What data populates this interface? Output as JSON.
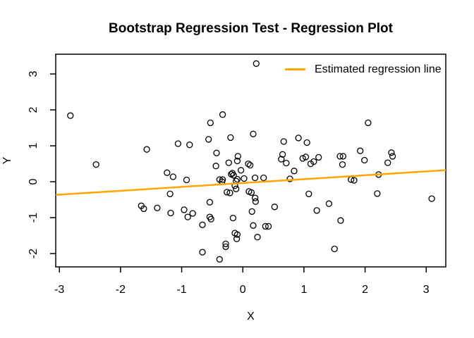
{
  "chart_data": {
    "type": "scatter",
    "title": "Bootstrap Regression Test - Regression Plot",
    "xlabel": "X",
    "ylabel": "Y",
    "xlim": [
      -3.06,
      3.32
    ],
    "ylim": [
      -2.37,
      3.55
    ],
    "x_ticks": [
      -3,
      -2,
      -1,
      0,
      1,
      2,
      3
    ],
    "y_ticks": [
      -2,
      -1,
      0,
      1,
      2,
      3
    ],
    "grid": false,
    "background": "#ffffff",
    "point_style": {
      "shape": "open-circle",
      "stroke": "#000000"
    },
    "legend": {
      "label": "Estimated regression line",
      "color": "#FFA500",
      "position": "top-right",
      "box": false
    },
    "regression_line": {
      "slope": 0.108,
      "intercept": -0.036,
      "x_start": -3.06,
      "x_end": 3.32,
      "color": "#FFA500"
    },
    "points": [
      [
        -2.82,
        1.84
      ],
      [
        -2.4,
        0.48
      ],
      [
        -1.66,
        -0.67
      ],
      [
        -1.62,
        -0.75
      ],
      [
        -1.57,
        0.9
      ],
      [
        -1.4,
        -0.73
      ],
      [
        -1.24,
        0.25
      ],
      [
        -1.19,
        -0.34
      ],
      [
        -1.18,
        -0.87
      ],
      [
        -1.14,
        0.14
      ],
      [
        -1.06,
        1.06
      ],
      [
        -0.96,
        -0.78
      ],
      [
        -0.92,
        0.05
      ],
      [
        -0.9,
        -0.98
      ],
      [
        -0.87,
        1.03
      ],
      [
        -0.82,
        -0.88
      ],
      [
        -0.66,
        -1.2
      ],
      [
        -0.66,
        -1.96
      ],
      [
        -0.56,
        1.18
      ],
      [
        -0.54,
        -0.57
      ],
      [
        -0.54,
        -0.98
      ],
      [
        -0.53,
        1.64
      ],
      [
        -0.52,
        -1.04
      ],
      [
        -0.44,
        0.44
      ],
      [
        -0.43,
        0.8
      ],
      [
        -0.38,
        0.06
      ],
      [
        -0.38,
        -2.16
      ],
      [
        -0.34,
        0.0
      ],
      [
        -0.33,
        1.87
      ],
      [
        -0.33,
        0.06
      ],
      [
        -0.28,
        -1.73
      ],
      [
        -0.28,
        -1.81
      ],
      [
        -0.26,
        -0.29
      ],
      [
        -0.23,
        0.53
      ],
      [
        -0.21,
        -0.31
      ],
      [
        -0.2,
        1.23
      ],
      [
        -0.19,
        0.21
      ],
      [
        -0.17,
        0.24
      ],
      [
        -0.16,
        -1.01
      ],
      [
        -0.15,
        0.18
      ],
      [
        -0.13,
        -0.11
      ],
      [
        -0.13,
        -1.43
      ],
      [
        -0.11,
        0.02
      ],
      [
        -0.11,
        -0.2
      ],
      [
        -0.1,
        -1.59
      ],
      [
        -0.09,
        0.58
      ],
      [
        -0.09,
        0.07
      ],
      [
        -0.09,
        -1.47
      ],
      [
        -0.08,
        0.71
      ],
      [
        -0.03,
        0.32
      ],
      [
        0.02,
        0.09
      ],
      [
        0.09,
        0.5
      ],
      [
        0.1,
        -0.27
      ],
      [
        0.12,
        0.46
      ],
      [
        0.14,
        -0.3
      ],
      [
        0.15,
        -0.83
      ],
      [
        0.17,
        1.33
      ],
      [
        0.17,
        -1.22
      ],
      [
        0.2,
        0.11
      ],
      [
        0.2,
        -0.45
      ],
      [
        0.21,
        -0.55
      ],
      [
        0.22,
        3.29
      ],
      [
        0.24,
        -1.54
      ],
      [
        0.34,
        0.11
      ],
      [
        0.37,
        -1.24
      ],
      [
        0.42,
        -1.24
      ],
      [
        0.52,
        -0.7
      ],
      [
        0.65,
        0.76
      ],
      [
        0.63,
        0.63
      ],
      [
        0.67,
        1.12
      ],
      [
        0.71,
        0.52
      ],
      [
        0.77,
        0.08
      ],
      [
        0.84,
        0.3
      ],
      [
        0.91,
        1.22
      ],
      [
        0.98,
        0.65
      ],
      [
        1.03,
        0.69
      ],
      [
        1.05,
        1.09
      ],
      [
        1.08,
        -0.34
      ],
      [
        1.11,
        0.5
      ],
      [
        1.16,
        0.56
      ],
      [
        1.21,
        -0.8
      ],
      [
        1.24,
        0.68
      ],
      [
        1.41,
        -0.61
      ],
      [
        1.5,
        -1.87
      ],
      [
        1.59,
        0.71
      ],
      [
        1.6,
        -1.08
      ],
      [
        1.63,
        0.48
      ],
      [
        1.64,
        0.71
      ],
      [
        1.77,
        0.06
      ],
      [
        1.82,
        0.04
      ],
      [
        1.92,
        0.86
      ],
      [
        1.99,
        0.6
      ],
      [
        2.05,
        1.64
      ],
      [
        2.2,
        -0.33
      ],
      [
        2.22,
        0.2
      ],
      [
        2.37,
        0.53
      ],
      [
        2.43,
        0.81
      ],
      [
        2.45,
        0.71
      ],
      [
        3.09,
        -0.47
      ]
    ]
  }
}
